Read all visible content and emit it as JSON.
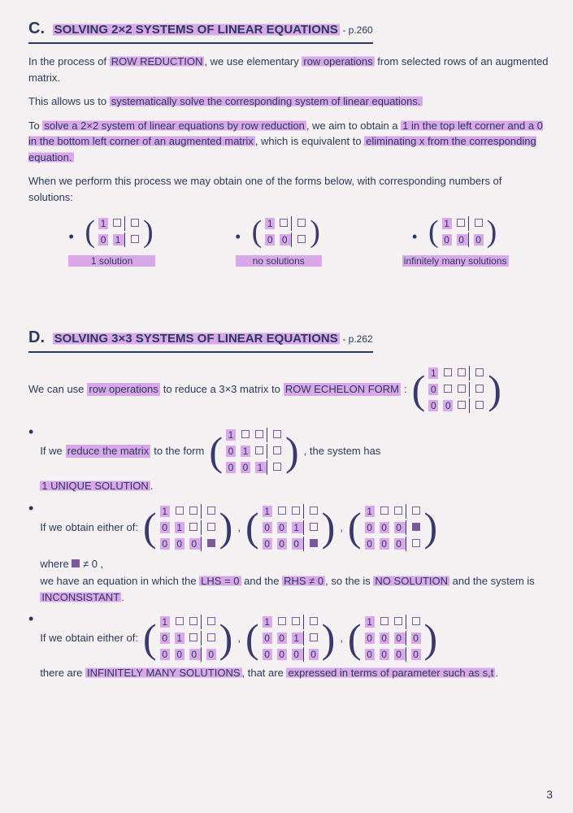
{
  "colors": {
    "highlight": "#d9a8e8",
    "ink": "#2a3a5a",
    "matrix_ink": "#7a5a9a"
  },
  "page_number": "3",
  "sectionC": {
    "letter": "C.",
    "title": "SOLVING 2×2 SYSTEMS OF LINEAR EQUATIONS",
    "page_ref": "- p.260",
    "para1_a": "In the process of ",
    "para1_hl1": "ROW REDUCTION",
    "para1_b": ", we use elementary ",
    "para1_hl2": "row operations",
    "para1_c": " from selected rows of an augmented matrix.",
    "para2_a": "This allows us to ",
    "para2_hl1": "systematically solve the corresponding system of linear equations.",
    "para3_a": "To ",
    "para3_hl1": "solve a 2×2 system of linear equations by row reduction",
    "para3_b": ", we aim to obtain a ",
    "para3_hl2": "1 in the top left corner and a 0 in the bottom left corner of an augmented matrix",
    "para3_c": ", which is equivalent to ",
    "para3_hl3": "eliminating x from the corresponding equation.",
    "para4": "When we perform this process we may obtain one of the forms below, with corresponding numbers of solutions:",
    "forms": [
      {
        "caption": "1 solution"
      },
      {
        "caption": "no solutions"
      },
      {
        "caption": "infinitely many solutions"
      }
    ]
  },
  "sectionD": {
    "letter": "D.",
    "title": "SOLVING 3×3 SYSTEMS OF LINEAR EQUATIONS",
    "page_ref": "- p.262",
    "intro_a": "We can use ",
    "intro_hl1": "row operations",
    "intro_b": " to reduce a 3×3 matrix to ",
    "intro_hl2": "ROW ECHELON FORM",
    "intro_c": ":",
    "bullet1_a": "If we ",
    "bullet1_hl1": "reduce the matrix",
    "bullet1_b": " to the form",
    "bullet1_c": ", the system has ",
    "bullet1_hl2": "1 UNIQUE SOLUTION",
    "bullet1_d": ".",
    "bullet2_a": "If we obtain either of:",
    "bullet2_where": "where ",
    "bullet2_neq": " ≠ 0 ,",
    "bullet2_b": "we have an equation in which the ",
    "bullet2_hl1": "LHS = 0",
    "bullet2_c": " and the ",
    "bullet2_hl2": "RHS ≠ 0",
    "bullet2_d": ", so the is ",
    "bullet2_hl3": "NO SOLUTION",
    "bullet2_e": " and the system is ",
    "bullet2_hl4": "INCONSISTANT",
    "bullet2_f": ".",
    "bullet3_a": "If we obtain either of:",
    "bullet3_b": "there are ",
    "bullet3_hl1": "INFINITELY MANY SOLUTIONS",
    "bullet3_c": ", that are ",
    "bullet3_hl2": "expressed in terms of parameter such as s,t",
    "bullet3_d": "."
  },
  "matrix_2x2_unique": {
    "rows": [
      [
        "1",
        "□",
        "|",
        "□"
      ],
      [
        "0",
        "1",
        "|",
        "□"
      ]
    ]
  },
  "matrix_2x2_none": {
    "rows": [
      [
        "1",
        "□",
        "|",
        "□"
      ],
      [
        "0",
        "0",
        "|",
        "□"
      ]
    ]
  },
  "matrix_2x2_inf": {
    "rows": [
      [
        "1",
        "□",
        "|",
        "□"
      ],
      [
        "0",
        "0",
        "|",
        "0"
      ]
    ]
  },
  "matrix_3x3_echelon": {
    "rows": [
      [
        "1",
        "□",
        "□",
        "|",
        "□"
      ],
      [
        "0",
        "□",
        "□",
        "|",
        "□"
      ],
      [
        "0",
        "0",
        "□",
        "|",
        "□"
      ]
    ]
  },
  "matrix_3x3_unique": {
    "rows": [
      [
        "1",
        "□",
        "□",
        "|",
        "□"
      ],
      [
        "0",
        "1",
        "□",
        "|",
        "□"
      ],
      [
        "0",
        "0",
        "1",
        "|",
        "□"
      ]
    ]
  },
  "matrix_3x3_none_a": {
    "rows": [
      [
        "1",
        "□",
        "□",
        "|",
        "□"
      ],
      [
        "0",
        "1",
        "□",
        "|",
        "□"
      ],
      [
        "0",
        "0",
        "0",
        "|",
        "■"
      ]
    ]
  },
  "matrix_3x3_none_b": {
    "rows": [
      [
        "1",
        "□",
        "□",
        "|",
        "□"
      ],
      [
        "0",
        "0",
        "1",
        "|",
        "□"
      ],
      [
        "0",
        "0",
        "0",
        "|",
        "■"
      ]
    ]
  },
  "matrix_3x3_none_c": {
    "rows": [
      [
        "1",
        "□",
        "□",
        "|",
        "□"
      ],
      [
        "0",
        "0",
        "0",
        "|",
        "■"
      ],
      [
        "0",
        "0",
        "0",
        "|",
        "□"
      ]
    ]
  },
  "matrix_3x3_inf_a": {
    "rows": [
      [
        "1",
        "□",
        "□",
        "|",
        "□"
      ],
      [
        "0",
        "1",
        "□",
        "|",
        "□"
      ],
      [
        "0",
        "0",
        "0",
        "|",
        "0"
      ]
    ]
  },
  "matrix_3x3_inf_b": {
    "rows": [
      [
        "1",
        "□",
        "□",
        "|",
        "□"
      ],
      [
        "0",
        "0",
        "1",
        "|",
        "□"
      ],
      [
        "0",
        "0",
        "0",
        "|",
        "0"
      ]
    ]
  },
  "matrix_3x3_inf_c": {
    "rows": [
      [
        "1",
        "□",
        "□",
        "|",
        "□"
      ],
      [
        "0",
        "0",
        "0",
        "|",
        "0"
      ],
      [
        "0",
        "0",
        "0",
        "|",
        "0"
      ]
    ]
  }
}
